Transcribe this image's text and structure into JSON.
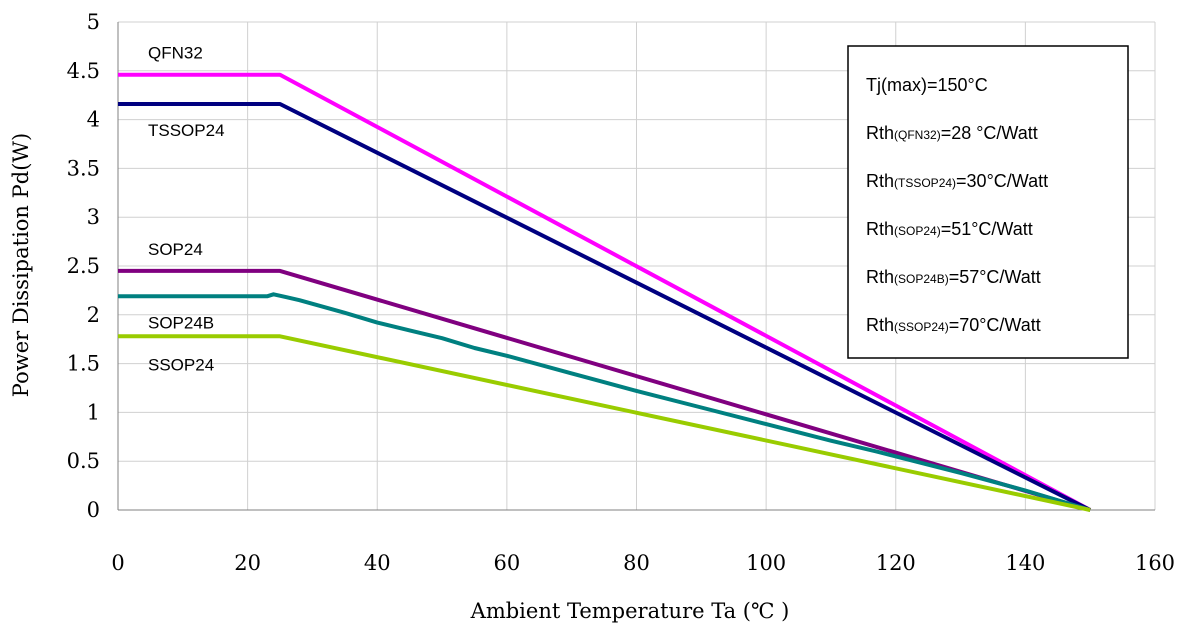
{
  "chart_data": {
    "type": "line",
    "xlabel": "Ambient Temperature Ta (℃ )",
    "ylabel": "Power Dissipation Pd(W)",
    "xlim": [
      0,
      160
    ],
    "ylim": [
      0,
      5
    ],
    "xticks": [
      "0",
      "20",
      "40",
      "60",
      "80",
      "100",
      "120",
      "140",
      "160"
    ],
    "yticks": [
      "0",
      "0.5",
      "1",
      "1.5",
      "2",
      "2.5",
      "3",
      "3.5",
      "4",
      "4.5",
      "5"
    ],
    "grid": true,
    "series": [
      {
        "name": "QFN32",
        "color": "#ff00ff",
        "x": [
          0,
          25,
          150
        ],
        "y": [
          4.46,
          4.46,
          0
        ]
      },
      {
        "name": "TSSOP24",
        "color": "#000080",
        "x": [
          0,
          25,
          150
        ],
        "y": [
          4.16,
          4.16,
          0
        ]
      },
      {
        "name": "SOP24",
        "color": "#800080",
        "x": [
          0,
          25,
          150
        ],
        "y": [
          2.45,
          2.45,
          0
        ]
      },
      {
        "name": "SOP24B",
        "color": "#008080",
        "x": [
          0,
          23,
          24,
          26,
          28,
          35,
          40,
          45,
          50,
          55,
          60,
          70,
          80,
          90,
          100,
          110,
          117,
          130,
          140,
          150
        ],
        "y": [
          2.19,
          2.19,
          2.21,
          2.18,
          2.15,
          2.02,
          1.92,
          1.84,
          1.76,
          1.66,
          1.58,
          1.4,
          1.22,
          1.05,
          0.88,
          0.71,
          0.6,
          0.38,
          0.2,
          0
        ]
      },
      {
        "name": "SSOP24",
        "color": "#99cc00",
        "x": [
          0,
          25,
          150
        ],
        "y": [
          1.78,
          1.78,
          0
        ]
      }
    ],
    "legend_box": {
      "placement": "top-right",
      "lines": [
        {
          "main": "Tj(max)=150°C",
          "sub": "",
          "rest": ""
        },
        {
          "main": "Rth",
          "sub": "(QFN32)",
          "rest": "=28 °C/Watt"
        },
        {
          "main": "Rth",
          "sub": "(TSSOP24)",
          "rest": "=30°C/Watt"
        },
        {
          "main": "Rth",
          "sub": "(SOP24)",
          "rest": "=51°C/Watt"
        },
        {
          "main": "Rth",
          "sub": "(SOP24B)",
          "rest": "=57°C/Watt"
        },
        {
          "main": "Rth",
          "sub": "(SSOP24)",
          "rest": "=70°C/Watt"
        }
      ]
    }
  }
}
